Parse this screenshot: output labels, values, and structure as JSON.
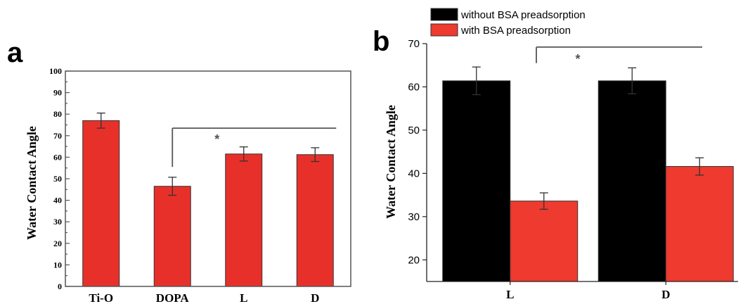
{
  "chart_data": [
    {
      "panel": "a",
      "type": "bar",
      "categories": [
        "Ti-O",
        "DOPA",
        "L",
        "D"
      ],
      "values": [
        77,
        46.5,
        61.5,
        61.2
      ],
      "errors": [
        3.5,
        4.2,
        3.3,
        3.2
      ],
      "ylabel": "Water Contact Angle",
      "ylim": [
        0,
        100
      ],
      "yticks": [
        "0",
        "10",
        "20",
        "30",
        "40",
        "50",
        "60",
        "70",
        "80",
        "90",
        "100"
      ],
      "bar_color": "#e8302a",
      "significance": {
        "label": "*",
        "from": "DOPA",
        "to": [
          "L",
          "D"
        ]
      }
    },
    {
      "panel": "b",
      "type": "bar",
      "categories": [
        "L",
        "D"
      ],
      "series": [
        {
          "name": "without BSA preadsorption",
          "color": "#000000",
          "values": [
            61.4,
            61.4
          ],
          "errors": [
            3.2,
            3.0
          ]
        },
        {
          "name": "with BSA preadsorption",
          "color": "#ee3a2f",
          "values": [
            33.6,
            41.6
          ],
          "errors": [
            1.9,
            2.0
          ]
        }
      ],
      "ylabel": "Water Contact Angle",
      "ylim": [
        15,
        70
      ],
      "yticks": [
        "20",
        "30",
        "40",
        "50",
        "60",
        "70"
      ],
      "legend": "top-left (outside)",
      "significance": {
        "label": "*",
        "from": "L",
        "to": "D"
      }
    }
  ]
}
